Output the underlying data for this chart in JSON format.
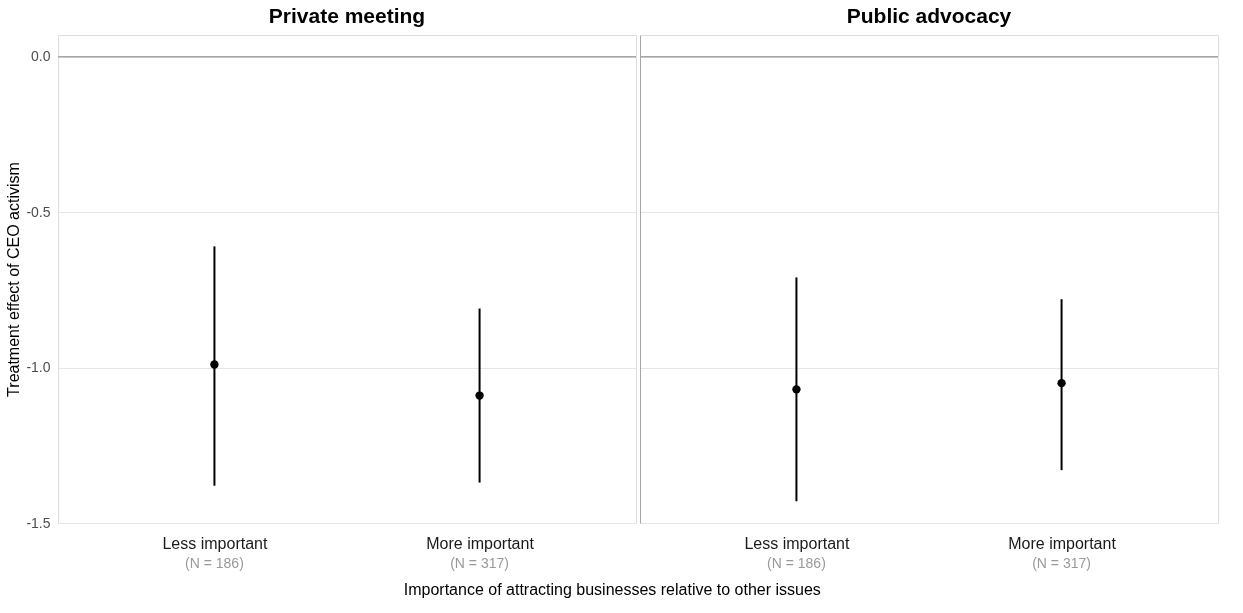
{
  "chart_data": [
    {
      "type": "scatter",
      "title": "Private meeting",
      "ylabel": "Treatment effect of CEO activism",
      "xlabel": "Importance of attracting businesses relative to other issues",
      "categories": [
        "Less important",
        "More important"
      ],
      "values": [
        -0.99,
        -1.09
      ],
      "errors": [
        [
          -1.38,
          -0.61
        ],
        [
          -1.37,
          -0.81
        ]
      ],
      "color": "#000000",
      "marker": "circle",
      "ylim": [
        -1.5,
        0.07
      ],
      "yticks": [
        {
          "value": 0,
          "label": "0.0"
        },
        {
          "value": -0.5,
          "label": "-0.5"
        },
        {
          "value": -1.0,
          "label": "-1.0"
        },
        {
          "value": -1.5,
          "label": "-1.5"
        }
      ],
      "grid": "y",
      "ref_lines": [
        {
          "axis": "y",
          "value": 0,
          "color": "#a6a6a6"
        }
      ],
      "annotations": [
        "(N = 186)",
        "(N = 317)"
      ]
    },
    {
      "type": "scatter",
      "title": "Public advocacy",
      "categories": [
        "Less important",
        "More important"
      ],
      "values": [
        -1.07,
        -1.05
      ],
      "errors": [
        [
          -1.43,
          -0.71
        ],
        [
          -1.33,
          -0.78
        ]
      ],
      "color": "#000000",
      "marker": "circle",
      "ylim": [
        -1.5,
        0.07
      ],
      "yticks": [
        0,
        -0.5,
        -1.0,
        -1.5
      ],
      "grid": "y",
      "tick_labels": "x",
      "ref_lines": [
        {
          "axis": "y",
          "value": 0,
          "color": "#a6a6a6"
        }
      ],
      "annotations": [
        "(N = 186)",
        "(N = 317)"
      ]
    }
  ]
}
